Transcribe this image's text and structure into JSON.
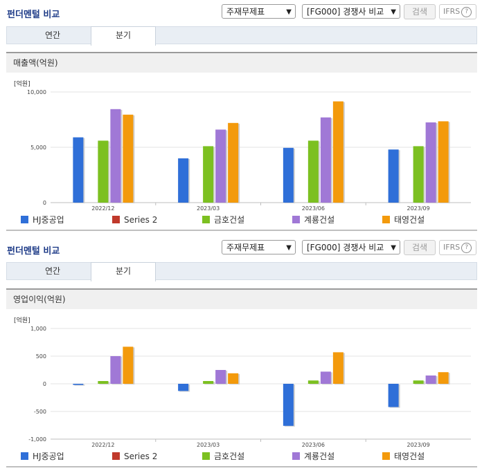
{
  "panels": [
    {
      "title": "펀더멘털 비교",
      "select1": "주재무제표",
      "select2": "[FG000] 경쟁사 비교",
      "search_btn": "검색",
      "ifrs": "IFRS",
      "ifrs_help": "?",
      "tabs": [
        "연간",
        "분기"
      ],
      "active_tab": 1,
      "metric": "매출액(억원)",
      "unit": "[억원]"
    },
    {
      "title": "펀더멘털 비교",
      "select1": "주재무제표",
      "select2": "[FG000] 경쟁사 비교",
      "search_btn": "검색",
      "ifrs": "IFRS",
      "ifrs_help": "?",
      "tabs": [
        "연간",
        "분기"
      ],
      "active_tab": 1,
      "metric": "영업이익(억원)",
      "unit": "[억원]"
    }
  ],
  "legend": [
    {
      "name": "HJ중공업",
      "color": "#2f6fd8"
    },
    {
      "name": "Series 2",
      "color": "#c0392b"
    },
    {
      "name": "금호건설",
      "color": "#7cc021"
    },
    {
      "name": "계룡건설",
      "color": "#a078d6"
    },
    {
      "name": "태영건설",
      "color": "#f39a0c"
    }
  ],
  "chart_data": [
    {
      "type": "bar",
      "title": "매출액(억원)",
      "ylabel": "[억원]",
      "categories": [
        "2022/12",
        "2023/03",
        "2023/06",
        "2023/09"
      ],
      "ylim": [
        0,
        10000
      ],
      "yticks": [
        0,
        5000,
        10000
      ],
      "ytick_labels": [
        "0",
        "5,000",
        "10,000"
      ],
      "series": [
        {
          "name": "HJ중공업",
          "values": [
            5900,
            4000,
            4950,
            4800
          ]
        },
        {
          "name": "Series 2",
          "values": [
            null,
            null,
            null,
            null
          ]
        },
        {
          "name": "금호건설",
          "values": [
            5600,
            5100,
            5600,
            5100
          ]
        },
        {
          "name": "계룡건설",
          "values": [
            8450,
            6600,
            7700,
            7250
          ]
        },
        {
          "name": "태영건설",
          "values": [
            7950,
            7200,
            9150,
            7350
          ]
        }
      ]
    },
    {
      "type": "bar",
      "title": "영업이익(억원)",
      "ylabel": "[억원]",
      "categories": [
        "2022/12",
        "2023/03",
        "2023/06",
        "2023/09"
      ],
      "ylim": [
        -1000,
        1000
      ],
      "yticks": [
        -1000,
        -500,
        0,
        500,
        1000
      ],
      "ytick_labels": [
        "-1,000",
        "-500",
        "0",
        "500",
        "1,000"
      ],
      "series": [
        {
          "name": "HJ중공업",
          "values": [
            -20,
            -130,
            -760,
            -420
          ]
        },
        {
          "name": "Series 2",
          "values": [
            null,
            null,
            null,
            null
          ]
        },
        {
          "name": "금호건설",
          "values": [
            50,
            50,
            60,
            60
          ]
        },
        {
          "name": "계룡건설",
          "values": [
            500,
            250,
            220,
            150
          ]
        },
        {
          "name": "태영건설",
          "values": [
            670,
            190,
            570,
            210
          ]
        }
      ]
    }
  ]
}
